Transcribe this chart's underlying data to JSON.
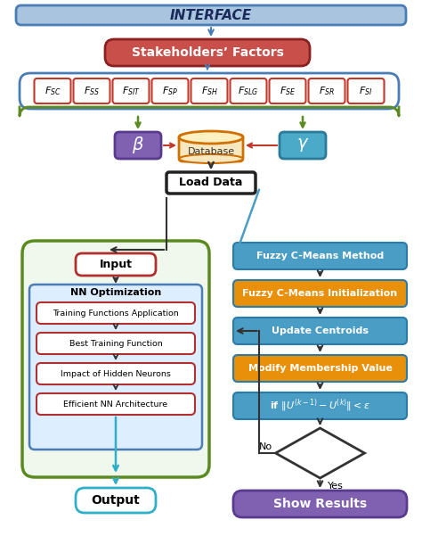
{
  "title": "INTERFACE",
  "bg_color": "#ffffff",
  "factor_labels": [
    "$F_{SC}$",
    "$F_{SS}$",
    "$F_{SIT}$",
    "$F_{SP}$",
    "$F_{SH}$",
    "$F_{SLG}$",
    "$F_{SE}$",
    "$F_{SR}$",
    "$F_{SI}$"
  ],
  "stakeholders_text": "Stakeholders’ Factors",
  "beta_text": "$\\beta$",
  "gamma_text": "$\\gamma$",
  "database_text": "Database",
  "loaddata_text": "Load Data",
  "input_text": "Input",
  "nn_opt_text": "NN Optimization",
  "nn_steps": [
    "Training Functions Application",
    "Best Training Function",
    "Impact of Hidden Neurons",
    "Efficient NN Architecture"
  ],
  "output_text": "Output",
  "right_boxes": [
    {
      "text": "Fuzzy C-Means Method",
      "fill": "#4a9dc4"
    },
    {
      "text": "Fuzzy C-Means Initialization",
      "fill": "#e8900a"
    },
    {
      "text": "Update Centroids",
      "fill": "#4a9dc4"
    },
    {
      "text": "Modify Membership Value",
      "fill": "#e8900a"
    },
    {
      "text": "if $\\|U^{(k-1)}-U^{(k)}\\| < \\varepsilon$",
      "fill": "#4a9dc4"
    }
  ],
  "show_results_text": "Show Results",
  "colors": {
    "interface_fill": "#a8c4de",
    "interface_edge": "#4a7db5",
    "interface_text": "#1a2a5a",
    "stakeholders_fill": "#c9504a",
    "stakeholders_edge": "#8b2020",
    "blue_brace": "#4a7db5",
    "green_brace": "#5a8a20",
    "factor_edge": "#c0392b",
    "beta_fill": "#8060b0",
    "beta_edge": "#5a3a8f",
    "gamma_fill": "#4aaac8",
    "gamma_edge": "#2a7a9a",
    "db_fill": "#f8e8c0",
    "db_edge": "#d07000",
    "loaddata_edge": "#222222",
    "nn_outer_fill": "#f0f8ee",
    "nn_outer_edge": "#5a8a20",
    "nn_inner_fill": "#dceeff",
    "nn_inner_edge": "#4a7db5",
    "input_edge": "#b03030",
    "step_edge": "#b03030",
    "output_edge": "#30b0c8",
    "show_fill": "#8060b0",
    "show_edge": "#5a3a8f",
    "arrow_dark": "#333333",
    "arrow_blue": "#4a9dc4",
    "arrow_green": "#5a8a20",
    "arrow_red": "#c0392b"
  }
}
